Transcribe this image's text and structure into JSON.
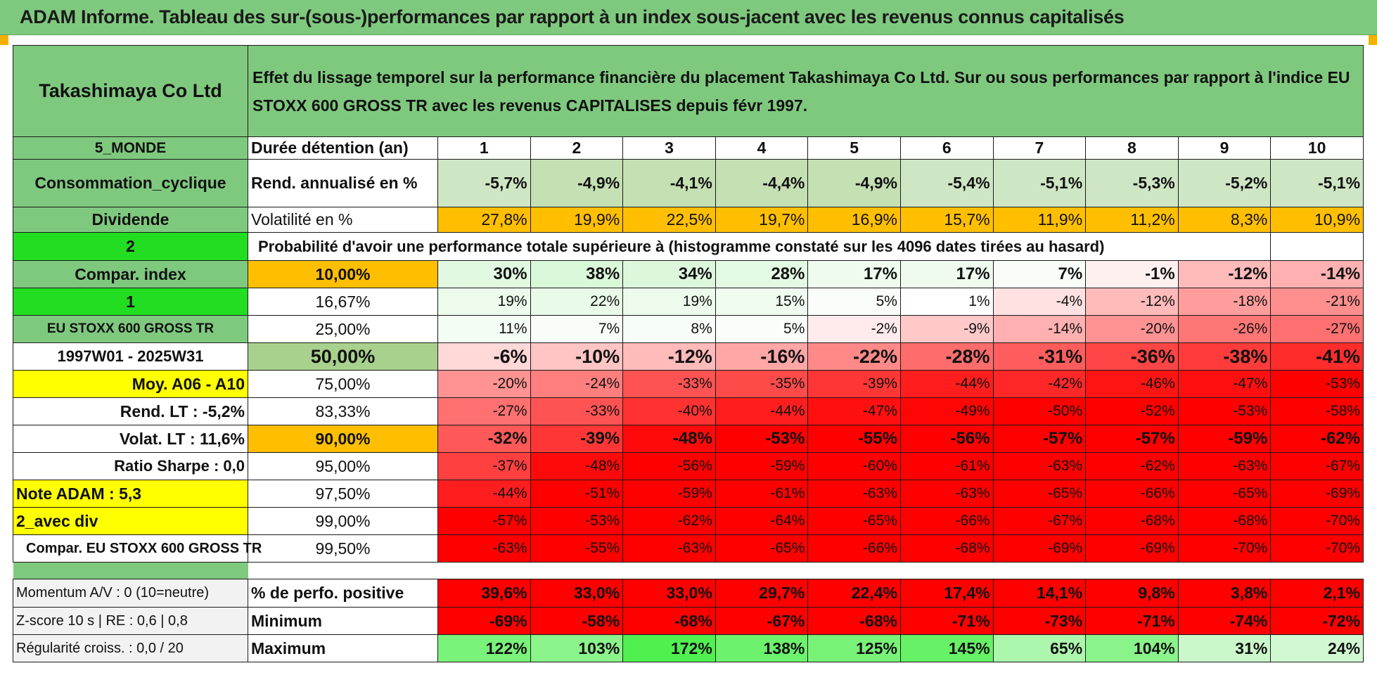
{
  "banner": {
    "title": "ADAM Informe. Tableau des sur-(sous-)performances par rapport à un index sous-jacent avec les revenus connus capitalisés"
  },
  "header": {
    "company": "Takashimaya Co Ltd",
    "description": "Effet du lissage temporel sur la performance financière du placement Takashimaya Co Ltd. Sur ou sous performances par rapport à l'indice EU STOXX 600 GROSS TR avec les revenus CAPITALISES depuis févr 1997."
  },
  "left": {
    "region": "5_MONDE",
    "sector": "Consommation_cyclique",
    "dividende": "Dividende",
    "choice1": "2",
    "compar_index": "Compar. index",
    "choice2": "1",
    "index_name": "EU STOXX 600 GROSS TR",
    "period": "1997W01 - 2025W31",
    "moy": "Moy. A06 - A10",
    "rend_lt": "Rend. LT :   -5,2%",
    "volat_lt": "Volat. LT :   11,6%",
    "sharpe": "Ratio Sharpe :    0,0",
    "note": "Note ADAM : 5,3",
    "avec_div": "2_avec div",
    "compar_full": "Compar. EU STOXX 600 GROSS TR",
    "momentum": "Momentum A/V : 0 (10=neutre)",
    "zscore": "Z-score 10 s | RE : 0,6 | 0,8",
    "regularite": "Régularité croiss. : 0,0 / 20"
  },
  "table": {
    "duree_label": "Durée détention (an)",
    "years": [
      "1",
      "2",
      "3",
      "4",
      "5",
      "6",
      "7",
      "8",
      "9",
      "10"
    ],
    "rend_label": "Rend. annualisé en %",
    "rend": [
      "-5,7%",
      "-4,9%",
      "-4,1%",
      "-4,4%",
      "-4,9%",
      "-5,4%",
      "-5,1%",
      "-5,3%",
      "-5,2%",
      "-5,1%"
    ],
    "vol_label": "Volatilité en %",
    "vol": [
      "27,8%",
      "19,9%",
      "22,5%",
      "19,7%",
      "16,9%",
      "15,7%",
      "11,9%",
      "11,2%",
      "8,3%",
      "10,9%"
    ],
    "proba_label": "Probabilité d'avoir une performance totale supérieure à (histogramme constaté sur les 4096 dates tirées au hasard)",
    "quantiles": [
      {
        "p": "10,00%",
        "v": [
          "30%",
          "38%",
          "34%",
          "28%",
          "17%",
          "17%",
          "7%",
          "-1%",
          "-12%",
          "-14%"
        ]
      },
      {
        "p": "16,67%",
        "v": [
          "19%",
          "22%",
          "19%",
          "15%",
          "5%",
          "1%",
          "-4%",
          "-12%",
          "-18%",
          "-21%"
        ]
      },
      {
        "p": "25,00%",
        "v": [
          "11%",
          "7%",
          "8%",
          "5%",
          "-2%",
          "-9%",
          "-14%",
          "-20%",
          "-26%",
          "-27%"
        ]
      },
      {
        "p": "50,00%",
        "v": [
          "-6%",
          "-10%",
          "-12%",
          "-16%",
          "-22%",
          "-28%",
          "-31%",
          "-36%",
          "-38%",
          "-41%"
        ]
      },
      {
        "p": "75,00%",
        "v": [
          "-20%",
          "-24%",
          "-33%",
          "-35%",
          "-39%",
          "-44%",
          "-42%",
          "-46%",
          "-47%",
          "-53%"
        ]
      },
      {
        "p": "83,33%",
        "v": [
          "-27%",
          "-33%",
          "-40%",
          "-44%",
          "-47%",
          "-49%",
          "-50%",
          "-52%",
          "-53%",
          "-58%"
        ]
      },
      {
        "p": "90,00%",
        "v": [
          "-32%",
          "-39%",
          "-48%",
          "-53%",
          "-55%",
          "-56%",
          "-57%",
          "-57%",
          "-59%",
          "-62%"
        ]
      },
      {
        "p": "95,00%",
        "v": [
          "-37%",
          "-48%",
          "-56%",
          "-59%",
          "-60%",
          "-61%",
          "-63%",
          "-62%",
          "-63%",
          "-67%"
        ]
      },
      {
        "p": "97,50%",
        "v": [
          "-44%",
          "-51%",
          "-59%",
          "-61%",
          "-63%",
          "-63%",
          "-65%",
          "-66%",
          "-65%",
          "-69%"
        ]
      },
      {
        "p": "99,00%",
        "v": [
          "-57%",
          "-53%",
          "-62%",
          "-64%",
          "-65%",
          "-66%",
          "-67%",
          "-68%",
          "-68%",
          "-70%"
        ]
      },
      {
        "p": "99,50%",
        "v": [
          "-63%",
          "-55%",
          "-63%",
          "-65%",
          "-66%",
          "-68%",
          "-69%",
          "-69%",
          "-70%",
          "-70%"
        ]
      }
    ],
    "positive_label": "% de perfo. positive",
    "positive": [
      "39,6%",
      "33,0%",
      "33,0%",
      "29,7%",
      "22,4%",
      "17,4%",
      "14,1%",
      "9,8%",
      "3,8%",
      "2,1%"
    ],
    "min_label": "Minimum",
    "min": [
      "-69%",
      "-58%",
      "-68%",
      "-67%",
      "-68%",
      "-71%",
      "-73%",
      "-71%",
      "-74%",
      "-72%"
    ],
    "max_label": "Maximum",
    "max": [
      "122%",
      "103%",
      "172%",
      "138%",
      "125%",
      "145%",
      "65%",
      "104%",
      "31%",
      "24%"
    ]
  },
  "colors": {
    "green_header": "#7fc97f",
    "bright_green": "#22dd22",
    "orange": "#ffbf00",
    "yellow": "#ffff00",
    "red_text": "#e01010"
  }
}
